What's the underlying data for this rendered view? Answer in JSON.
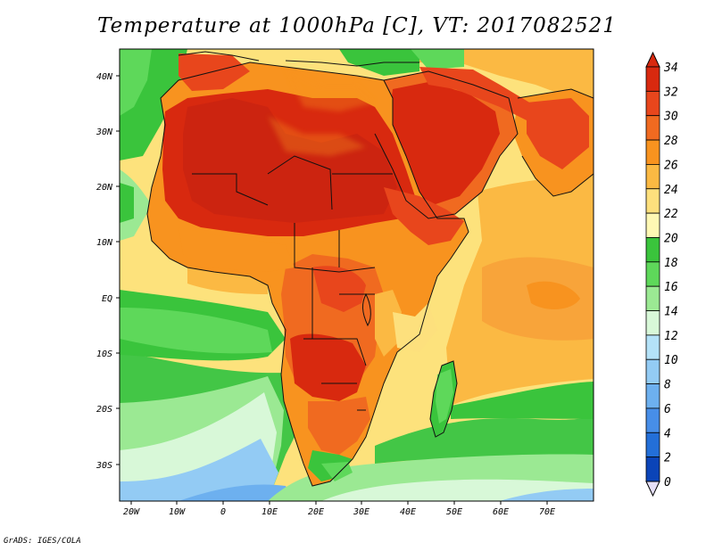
{
  "title": "Temperature at 1000hPa [C], VT: 2017082521",
  "credit": "GrADS: IGES/COLA",
  "axes": {
    "lon_labels": [
      "20W",
      "10W",
      "0",
      "10E",
      "20E",
      "30E",
      "40E",
      "50E",
      "60E",
      "70E"
    ],
    "lat_labels": [
      "40N",
      "30N",
      "20N",
      "10N",
      "EQ",
      "10S",
      "20S",
      "30S"
    ]
  },
  "colorbar": {
    "levels": [
      "34",
      "32",
      "30",
      "28",
      "26",
      "24",
      "22",
      "20",
      "18",
      "16",
      "14",
      "12",
      "10",
      "8",
      "6",
      "4",
      "2",
      "0"
    ],
    "colors": [
      "#d8290f",
      "#e8461c",
      "#f06a20",
      "#f8931f",
      "#fbb943",
      "#fde07d",
      "#fef8b4",
      "#3ac43c",
      "#5ed85a",
      "#9be993",
      "#d8f8d8",
      "#b4e2f8",
      "#93cbf4",
      "#6db0ef",
      "#478ee8",
      "#236fd8",
      "#0b44b8",
      "#09207e",
      "#e6e0f8"
    ]
  },
  "map": {
    "region": "Africa, Arabia and Indian Ocean",
    "extent": {
      "lon": [
        -22,
        80
      ],
      "lat": [
        -37,
        45
      ]
    },
    "style": {
      "ocean": "#fbe592",
      "cold_ocean": "#7fbdf0",
      "land_hot": "#d92b10",
      "border": "#111111"
    }
  }
}
